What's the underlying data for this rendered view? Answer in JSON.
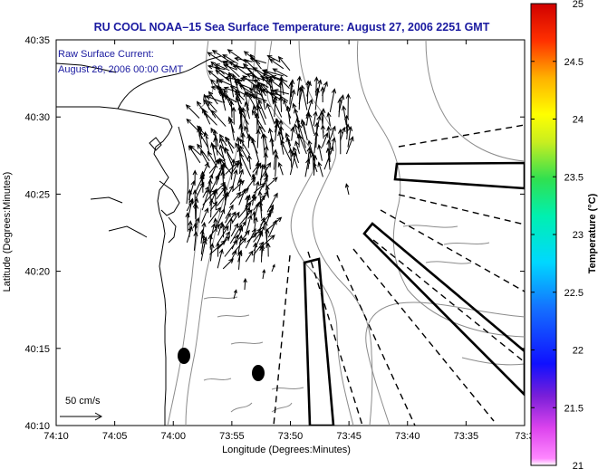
{
  "chart_data": {
    "type": "vector-map",
    "title": "RU COOL  NOAA–15  Sea Surface Temperature:  August 27, 2006 2251 GMT",
    "annotation_line1": "Raw Surface Current:",
    "annotation_line2": "August 28, 2006 00:00 GMT",
    "xlabel": "Longitude (Degrees:Minutes)",
    "ylabel": "Latitude (Degrees:Minutes)",
    "x_ticks": [
      "74:10",
      "74:05",
      "74:00",
      "73:55",
      "73:50",
      "73:45",
      "73:40",
      "73:35",
      "73:3"
    ],
    "y_ticks": [
      "40:35",
      "40:30",
      "40:25",
      "40:20",
      "40:15",
      "40:10"
    ],
    "xlim_minutes_west": [
      4450,
      4410
    ],
    "ylim_minutes_north": [
      2410,
      2435
    ],
    "scale_label": "50 cm/s",
    "colorbar": {
      "label": "Temperature (°C)",
      "ticks": [
        "25",
        "24.5",
        "24",
        "23.5",
        "23",
        "22.5",
        "22",
        "21.5",
        "21"
      ],
      "range": [
        21,
        25
      ]
    },
    "colors": {
      "title": "#1a1aa0",
      "vectors": "#000000",
      "contours": "#8c8c8c",
      "coast": "#000000"
    }
  }
}
